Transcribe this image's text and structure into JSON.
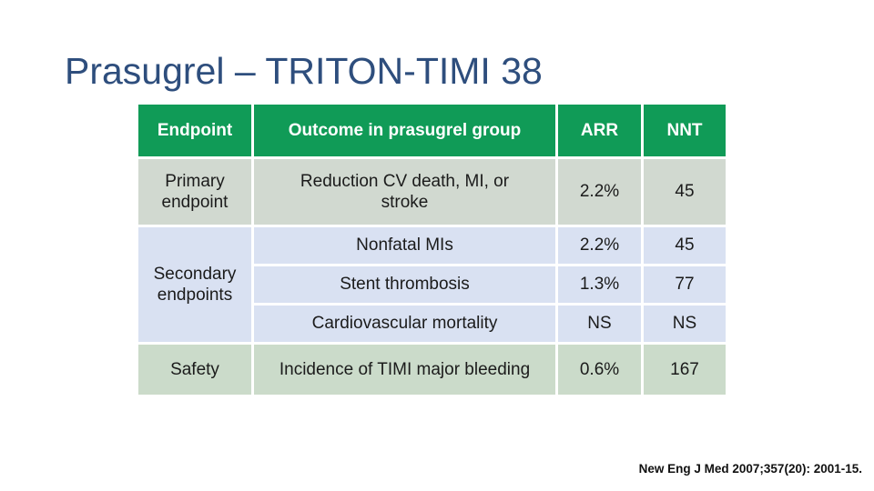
{
  "title": "Prasugrel – TRITON-TIMI 38",
  "citation": "New Eng J Med 2007;357(20): 2001-15.",
  "colors": {
    "title_text": "#2e4e7d",
    "header_bg": "#109b57",
    "header_text": "#ffffff",
    "primary_row_bg": "#d1d9d0",
    "secondary_row_bg": "#d9e1f2",
    "safety_row_bg": "#cbdbca",
    "body_text": "#1b1b1b"
  },
  "table": {
    "headers": [
      "Endpoint",
      "Outcome in prasugrel group",
      "ARR",
      "NNT"
    ],
    "rows": [
      {
        "endpoint": "Primary endpoint",
        "outcome": "Reduction CV death, MI, or stroke",
        "arr": "2.2%",
        "nnt": "45"
      },
      {
        "endpoint": "Secondary endpoints",
        "outcome": "Nonfatal MIs",
        "arr": "2.2%",
        "nnt": "45"
      },
      {
        "outcome": "Stent thrombosis",
        "arr": "1.3%",
        "nnt": "77"
      },
      {
        "outcome": "Cardiovascular mortality",
        "arr": "NS",
        "nnt": "NS"
      },
      {
        "endpoint": "Safety",
        "outcome": "Incidence of TIMI major bleeding",
        "arr": "0.6%",
        "nnt": "167"
      }
    ]
  }
}
